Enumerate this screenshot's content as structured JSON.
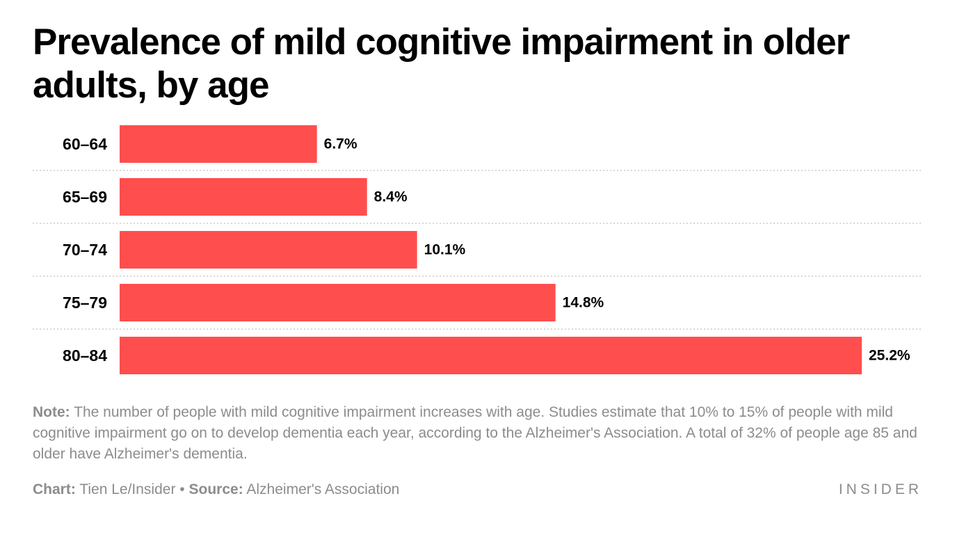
{
  "title": "Prevalence of mild cognitive impairment in older adults, by age",
  "note": {
    "label": "Note:",
    "text": "The number of people with mild cognitive impairment increases with age. Studies estimate that 10% to 15% of people with mild cognitive impairment go on to develop dementia each year, according to the Alzheimer's Association. A total of 32% of people age 85 and older have Alzheimer's dementia."
  },
  "credits": {
    "chart_label": "Chart:",
    "chart_value": "Tien Le/Insider",
    "separator": "•",
    "source_label": "Source:",
    "source_value": "Alzheimer's Association"
  },
  "logo": "INSIDER",
  "colors": {
    "bar": "#ff4e4e",
    "grid": "#cccccc",
    "muted_text": "#8c8c8c"
  },
  "chart_data": {
    "type": "bar",
    "orientation": "horizontal",
    "title": "Prevalence of mild cognitive impairment in older adults, by age",
    "categories": [
      "60–64",
      "65–69",
      "70–74",
      "75–79",
      "80–84"
    ],
    "values": [
      6.7,
      8.4,
      10.1,
      14.8,
      25.2
    ],
    "value_labels": [
      "6.7%",
      "8.4%",
      "10.1%",
      "14.8%",
      "25.2%"
    ],
    "unit": "%",
    "xlim": [
      0,
      25.2
    ],
    "grid": "dotted separators between rows",
    "legend": "none"
  }
}
